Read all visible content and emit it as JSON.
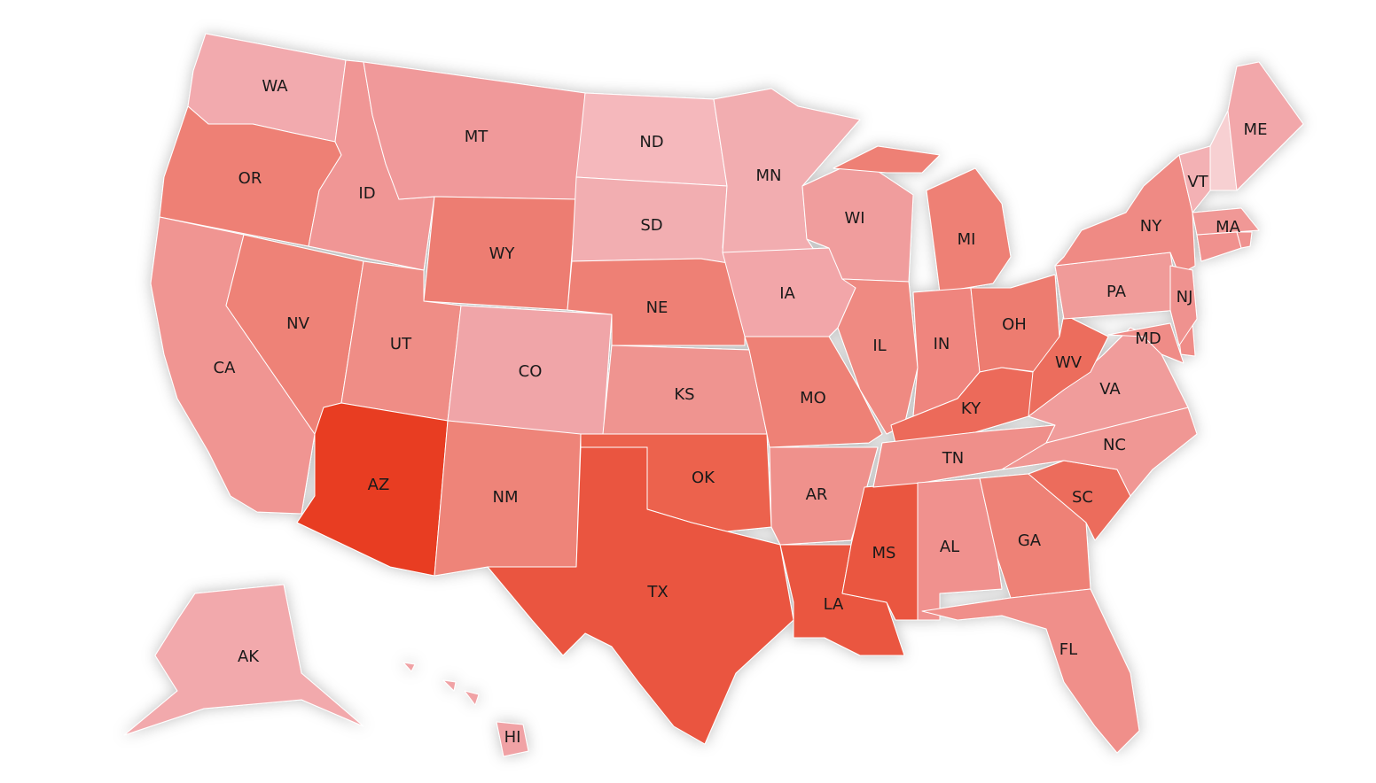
{
  "states": [
    {
      "label": "WA",
      "color": "#f2aaae"
    },
    {
      "label": "OR",
      "color": "#ee8074"
    },
    {
      "label": "CA",
      "color": "#f09592"
    },
    {
      "label": "NV",
      "color": "#ee8277"
    },
    {
      "label": "ID",
      "color": "#f09695"
    },
    {
      "label": "MT",
      "color": "#f0999a"
    },
    {
      "label": "WY",
      "color": "#ed7d72"
    },
    {
      "label": "UT",
      "color": "#ef8d86"
    },
    {
      "label": "AZ",
      "color": "#e83d23"
    },
    {
      "label": "CO",
      "color": "#f0a5a8"
    },
    {
      "label": "NM",
      "color": "#ee8479"
    },
    {
      "label": "ND",
      "color": "#f5b8bc"
    },
    {
      "label": "SD",
      "color": "#f2aeb1"
    },
    {
      "label": "NE",
      "color": "#ee8075"
    },
    {
      "label": "KS",
      "color": "#ef9490"
    },
    {
      "label": "OK",
      "color": "#ec624e"
    },
    {
      "label": "TX",
      "color": "#ea553f"
    },
    {
      "label": "MN",
      "color": "#f2adb0"
    },
    {
      "label": "IA",
      "color": "#f2a6a9"
    },
    {
      "label": "MO",
      "color": "#ee8176"
    },
    {
      "label": "AR",
      "color": "#ef918c"
    },
    {
      "label": "LA",
      "color": "#ea563f"
    },
    {
      "label": "MS",
      "color": "#ea5741"
    },
    {
      "label": "WI",
      "color": "#f09d9d"
    },
    {
      "label": "IL",
      "color": "#ef8a82"
    },
    {
      "label": "MI",
      "color": "#ee8075"
    },
    {
      "label": "IN",
      "color": "#ef857e"
    },
    {
      "label": "OH",
      "color": "#ed7b70"
    },
    {
      "label": "KY",
      "color": "#ec6b5a"
    },
    {
      "label": "TN",
      "color": "#ef8f8a"
    },
    {
      "label": "AL",
      "color": "#f0918e"
    },
    {
      "label": "GA",
      "color": "#ee8176"
    },
    {
      "label": "FL",
      "color": "#f08f8a"
    },
    {
      "label": "SC",
      "color": "#ec6c5c"
    },
    {
      "label": "NC",
      "color": "#f09794"
    },
    {
      "label": "VA",
      "color": "#f09c9b"
    },
    {
      "label": "WV",
      "color": "#ec6d5d"
    },
    {
      "label": "PA",
      "color": "#f09b99"
    },
    {
      "label": "NY",
      "color": "#ef8a84"
    },
    {
      "label": "VT",
      "color": "#f3b1b4"
    },
    {
      "label": "ME",
      "color": "#f2a7aa"
    },
    {
      "label": "MA",
      "color": "#f09896"
    },
    {
      "label": "NJ",
      "color": "#ef928f"
    },
    {
      "label": "MD",
      "color": "#ef8c87"
    },
    {
      "label": "AK",
      "color": "#f2a9ac"
    },
    {
      "label": "HI",
      "color": "#f0a2a5"
    }
  ]
}
